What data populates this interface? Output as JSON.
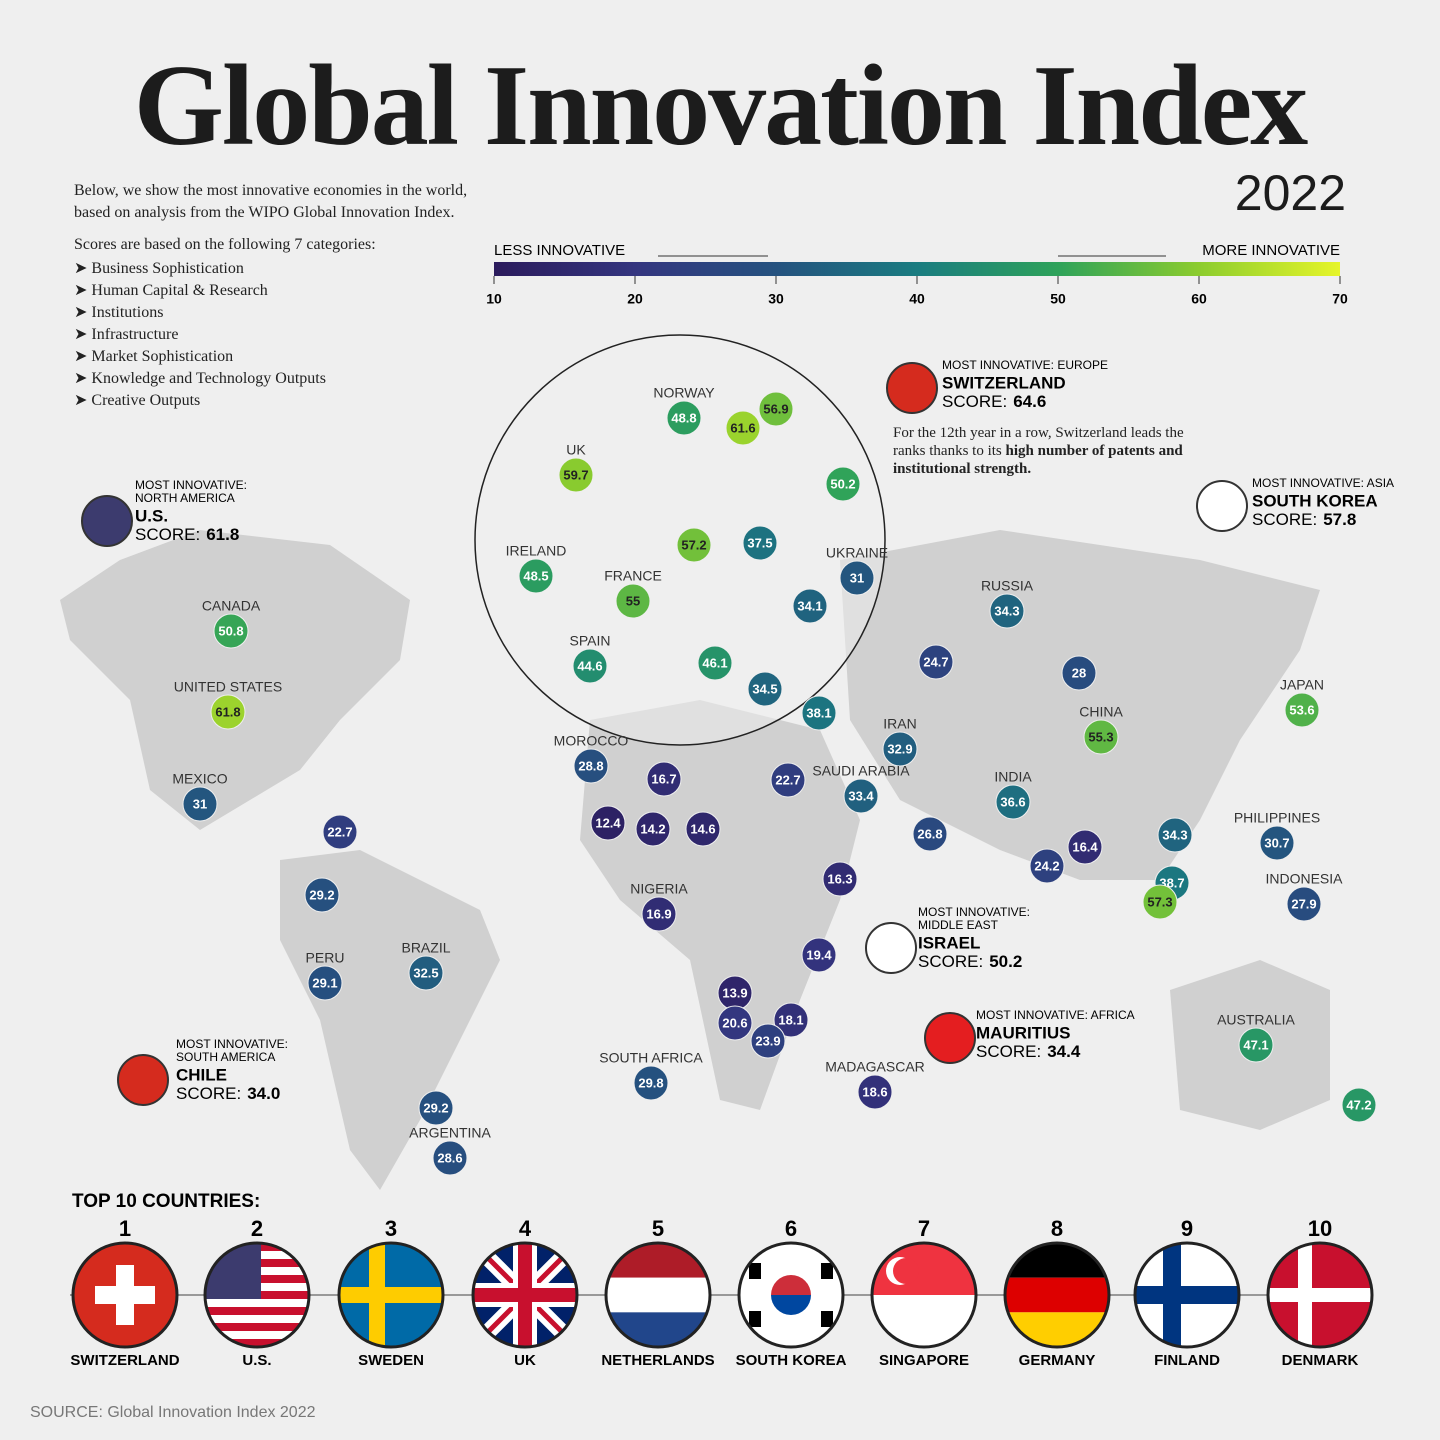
{
  "header": {
    "title": "Global Innovation Index",
    "year": "2022"
  },
  "intro": {
    "text": "Below, we show the most innovative economies in the world, based on analysis from the WIPO Global Innovation Index.",
    "categories_heading": "Scores are based on the following 7 categories:",
    "categories": [
      "Business Sophistication",
      "Human Capital & Research",
      "Institutions",
      "Infrastructure",
      "Market Sophistication",
      "Knowledge and Technology Outputs",
      "Creative Outputs"
    ]
  },
  "scale": {
    "less_label": "LESS INNOVATIVE",
    "more_label": "MORE INNOVATIVE",
    "xlim": [
      10,
      70
    ],
    "xticks": [
      10,
      20,
      30,
      40,
      50,
      60,
      70
    ]
  },
  "map_labels": [
    {
      "name": "NORWAY",
      "value": 48.8
    },
    {
      "value": 61.6
    },
    {
      "value": 56.9
    },
    {
      "name": "UK",
      "value": 59.7
    },
    {
      "value": 50.2
    },
    {
      "name": "IRELAND",
      "value": 48.5
    },
    {
      "value": 57.2
    },
    {
      "value": 37.5
    },
    {
      "name": "UKRAINE",
      "value": 31
    },
    {
      "name": "FRANCE",
      "value": 55
    },
    {
      "value": 34.1
    },
    {
      "name": "SPAIN",
      "value": 44.6
    },
    {
      "value": 46.1
    },
    {
      "value": 34.5
    },
    {
      "name": "RUSSIA",
      "value": 34.3
    },
    {
      "value": 24.7
    },
    {
      "value": 28
    },
    {
      "name": "JAPAN",
      "value": 53.6
    },
    {
      "name": "CANADA",
      "value": 50.8
    },
    {
      "name": "UNITED STATES",
      "value": 61.8
    },
    {
      "name": "MEXICO",
      "value": 31
    },
    {
      "value": 22.7
    },
    {
      "value": 38.1
    },
    {
      "name": "MOROCCO",
      "value": 28.8
    },
    {
      "name": "IRAN",
      "value": 32.9
    },
    {
      "name": "CHINA",
      "value": 55.3
    },
    {
      "value": 16.7
    },
    {
      "value": 22.7
    },
    {
      "name": "SAUDI ARABIA",
      "value": 33.4
    },
    {
      "value": 26.8
    },
    {
      "name": "INDIA",
      "value": 36.6
    },
    {
      "value": 34.3
    },
    {
      "name": "PHILIPPINES",
      "value": 30.7
    },
    {
      "value": 12.4
    },
    {
      "value": 14.2
    },
    {
      "value": 14.6
    },
    {
      "value": 16.4
    },
    {
      "value": 24.2
    },
    {
      "value": 38.7
    },
    {
      "value": 57.3
    },
    {
      "name": "INDONESIA",
      "value": 27.9
    },
    {
      "value": 29.2
    },
    {
      "name": "NIGERIA",
      "value": 16.9
    },
    {
      "value": 16.3
    },
    {
      "name": "BRAZIL",
      "value": 32.5
    },
    {
      "name": "PERU",
      "value": 29.1
    },
    {
      "value": 19.4
    },
    {
      "value": 13.9
    },
    {
      "value": 20.6
    },
    {
      "value": 18.1
    },
    {
      "value": 23.9
    },
    {
      "name": "SOUTH AFRICA",
      "value": 29.8
    },
    {
      "name": "MADAGASCAR",
      "value": 18.6
    },
    {
      "name": "AUSTRALIA",
      "value": 47.1
    },
    {
      "value": 47.2
    },
    {
      "value": 29.2
    },
    {
      "name": "ARGENTINA",
      "value": 28.6
    }
  ],
  "score_label": "SCORE:",
  "callouts": [
    {
      "region": [
        "MOST INNOVATIVE:",
        "NORTH AMERICA"
      ],
      "country": "U.S.",
      "score": "61.8"
    },
    {
      "region": [
        "MOST INNOVATIVE: EUROPE"
      ],
      "country": "SWITZERLAND",
      "score": "64.6"
    },
    {
      "region": [
        "MOST INNOVATIVE: ASIA"
      ],
      "country": "SOUTH KOREA",
      "score": "57.8"
    },
    {
      "region": [
        "MOST INNOVATIVE:",
        "MIDDLE EAST"
      ],
      "country": "ISRAEL",
      "score": "50.2"
    },
    {
      "region": [
        "MOST INNOVATIVE: AFRICA"
      ],
      "country": "MAURITIUS",
      "score": "34.4"
    },
    {
      "region": [
        "MOST INNOVATIVE:",
        "SOUTH AMERICA"
      ],
      "country": "CHILE",
      "score": "34.0"
    }
  ],
  "note": {
    "text": "For the 12th year in a row, Switzerland leads the ranks thanks to its ",
    "bold": "high number of patents and institutional strength."
  },
  "top10": {
    "heading": "TOP 10 COUNTRIES:",
    "items": [
      {
        "rank": 1,
        "name": "SWITZERLAND"
      },
      {
        "rank": 2,
        "name": "U.S."
      },
      {
        "rank": 3,
        "name": "SWEDEN"
      },
      {
        "rank": 4,
        "name": "UK"
      },
      {
        "rank": 5,
        "name": "NETHERLANDS"
      },
      {
        "rank": 6,
        "name": "SOUTH KOREA"
      },
      {
        "rank": 7,
        "name": "SINGAPORE"
      },
      {
        "rank": 8,
        "name": "GERMANY"
      },
      {
        "rank": 9,
        "name": "FINLAND"
      },
      {
        "rank": 10,
        "name": "DENMARK"
      }
    ]
  },
  "source": "SOURCE: Global Innovation Index 2022"
}
